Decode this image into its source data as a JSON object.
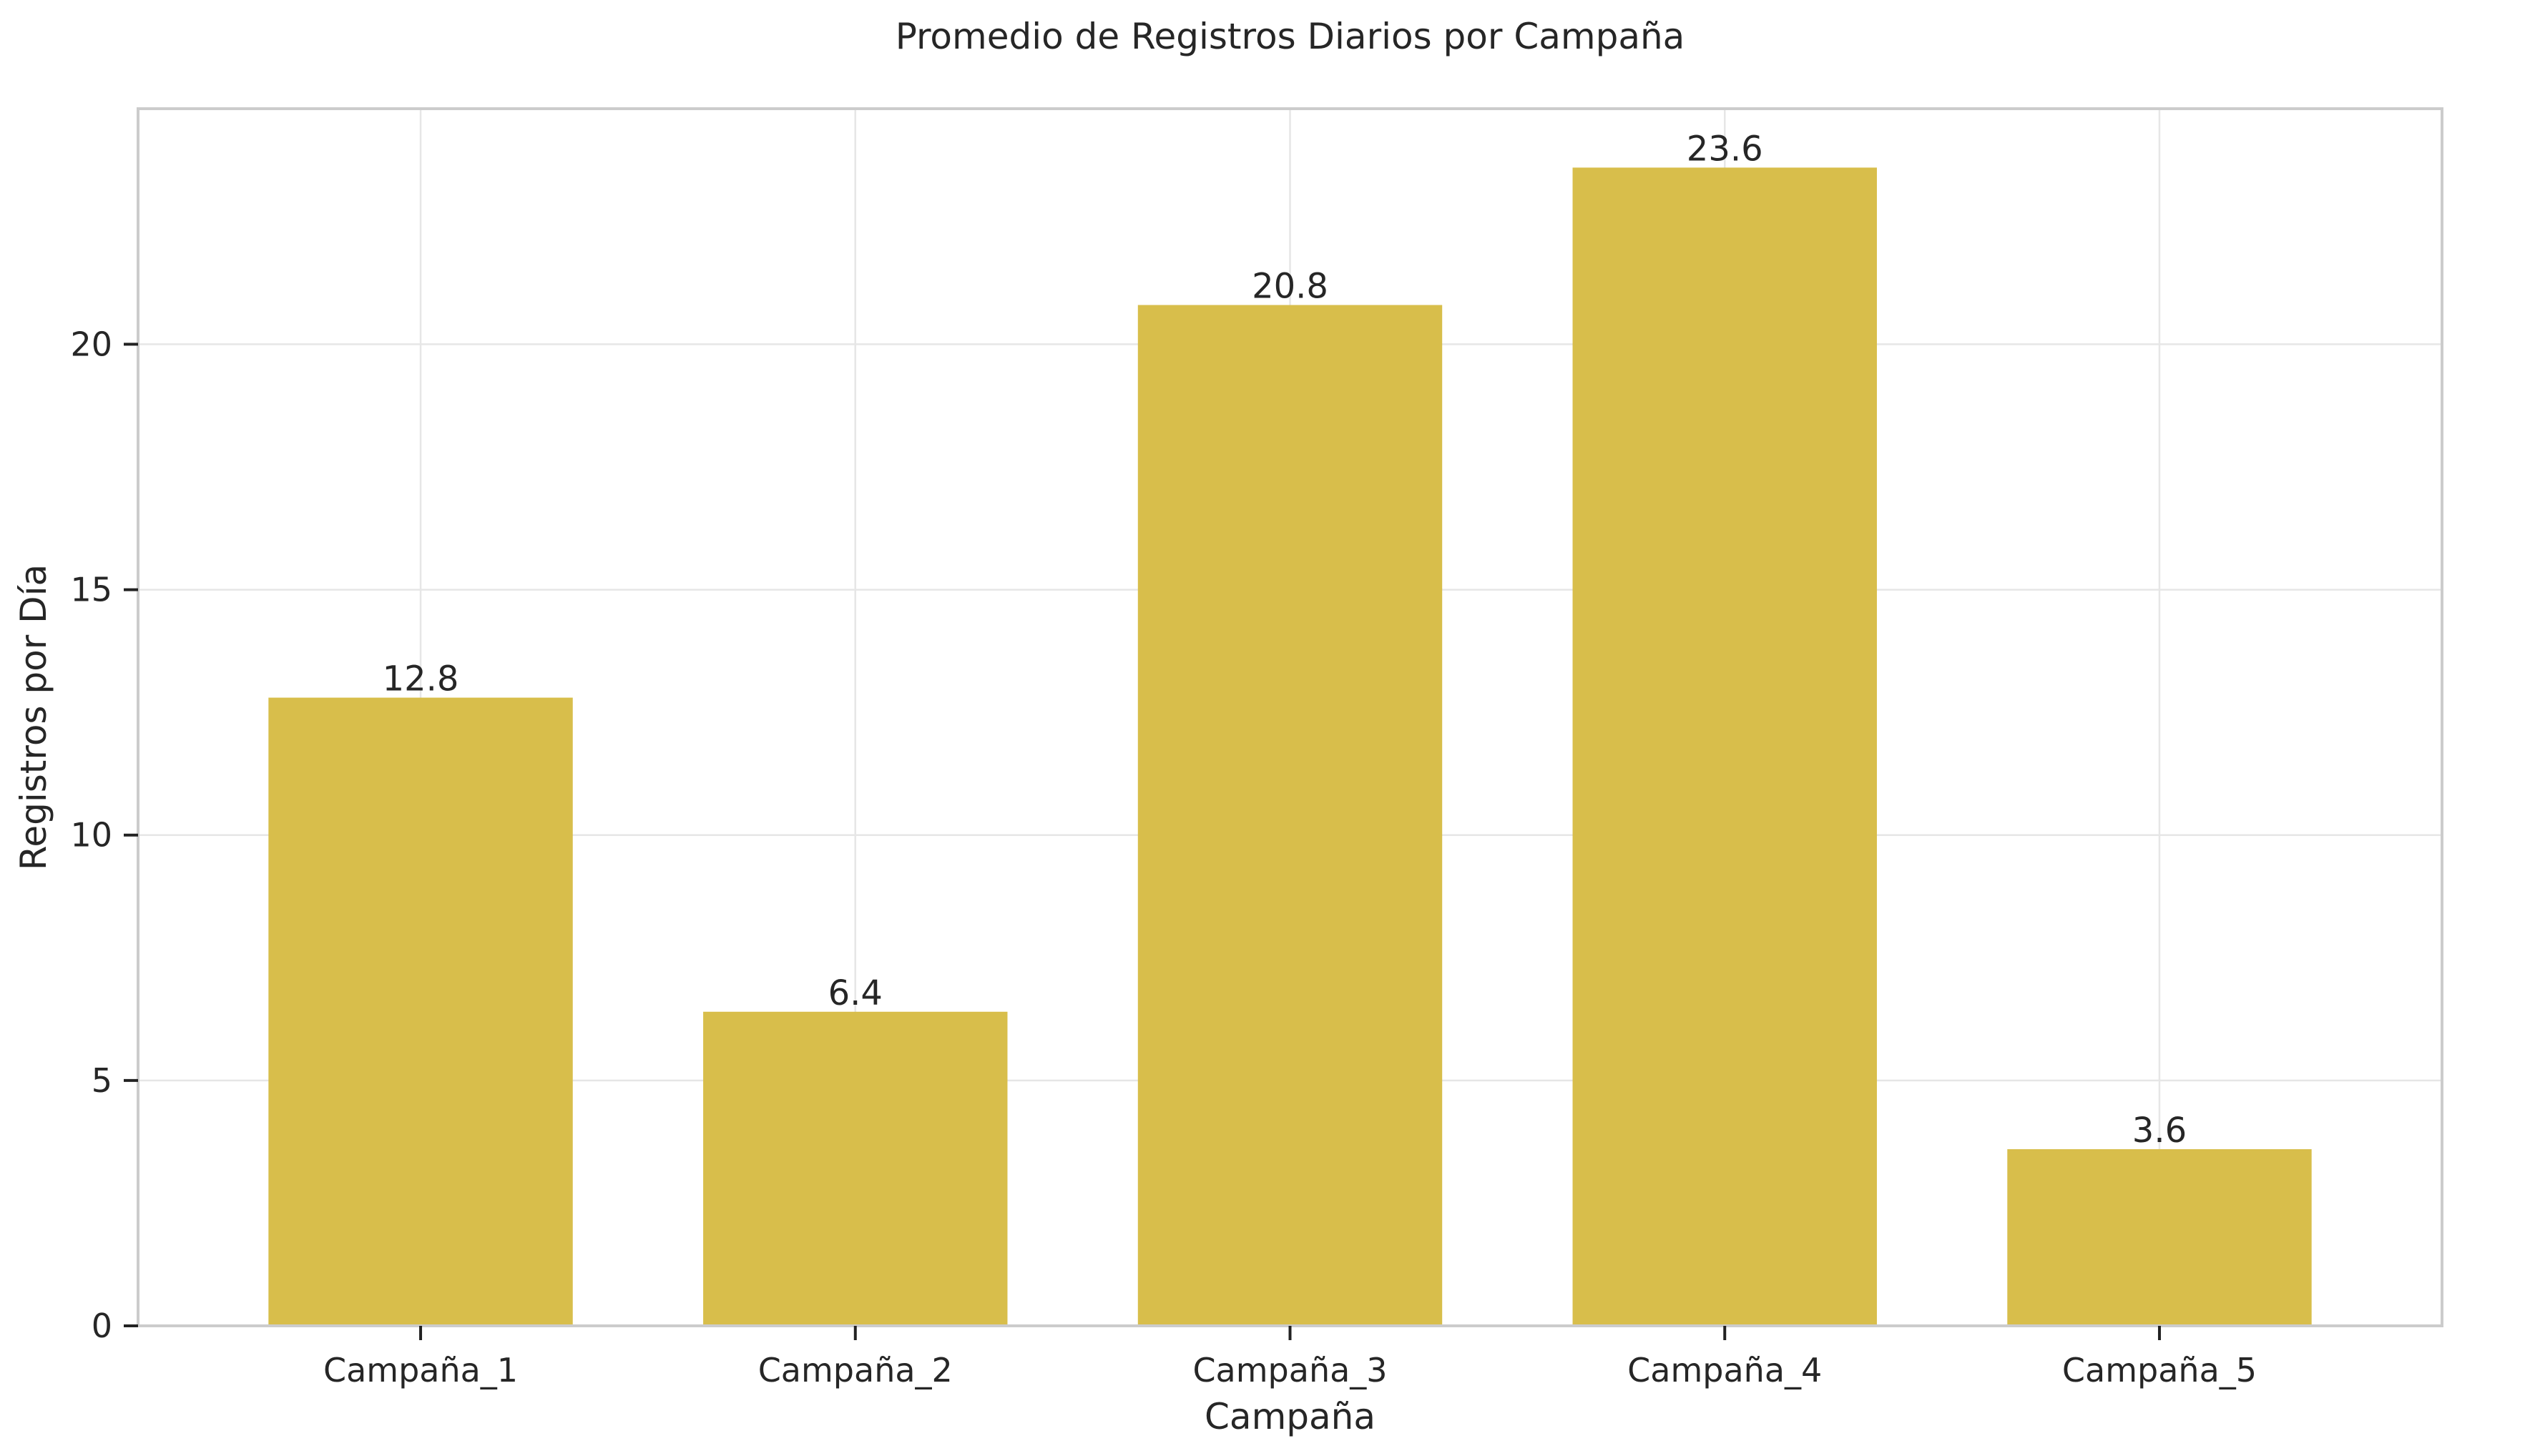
{
  "chart_data": {
    "type": "bar",
    "title": "Promedio de Registros Diarios por Campaña",
    "xlabel": "Campaña",
    "ylabel": "Registros por Día",
    "categories": [
      "Campaña_1",
      "Campaña_2",
      "Campaña_3",
      "Campaña_4",
      "Campaña_5"
    ],
    "values": [
      12.8,
      6.4,
      20.8,
      23.6,
      3.6
    ],
    "value_labels": [
      "12.8",
      "6.4",
      "20.8",
      "23.6",
      "3.6"
    ],
    "ylim": [
      0,
      24.8
    ],
    "yticks": [
      0,
      5,
      10,
      15,
      20
    ],
    "ytick_labels": [
      "0",
      "5",
      "10",
      "15",
      "20"
    ],
    "grid": true,
    "legend": "none",
    "colors": {
      "bar": "#d8be4b",
      "frame": "#cccccc",
      "grid": "#e6e6e6",
      "text": "#262626"
    }
  }
}
